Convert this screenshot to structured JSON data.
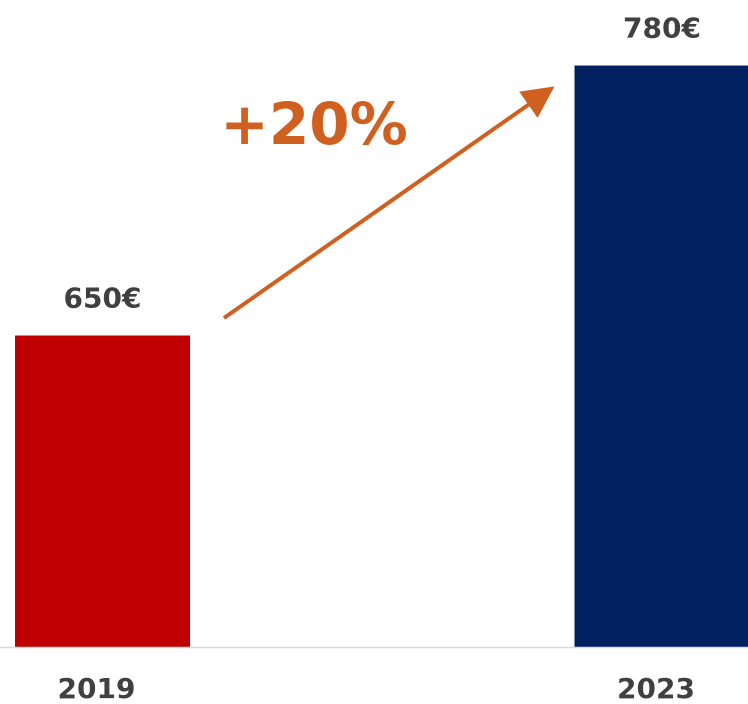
{
  "chart_data": {
    "type": "bar",
    "categories": [
      "2019",
      "2023"
    ],
    "values": [
      650,
      780
    ],
    "value_labels": [
      "650€",
      "780€"
    ],
    "colors": [
      "#c00000",
      "#002060"
    ],
    "annotation": "+20%",
    "ylim": [
      500,
      800
    ]
  }
}
